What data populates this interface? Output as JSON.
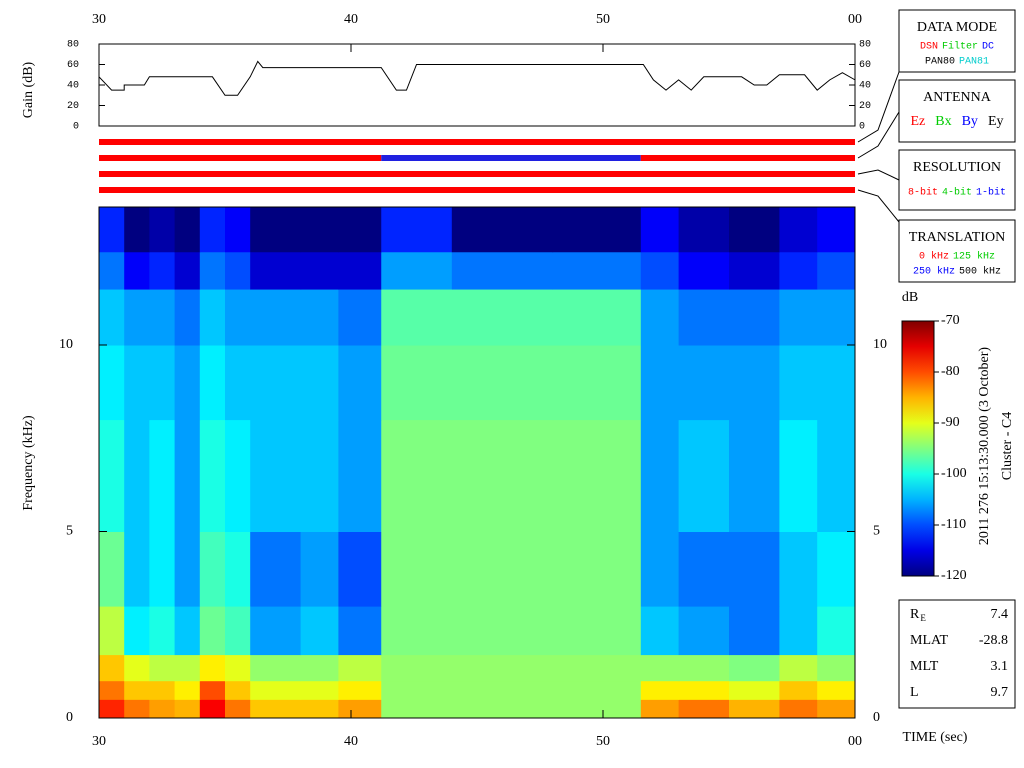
{
  "chart_data": [
    {
      "type": "line",
      "ylabel": "Gain (dB)",
      "color": "#000000",
      "x": [
        30,
        30.5,
        31,
        31,
        31.8,
        32,
        34.5,
        35,
        35.5,
        36,
        36.3,
        36.5,
        41.2,
        41.8,
        42.2,
        42.6,
        51.6,
        52,
        52.5,
        53,
        53.5,
        54,
        55.5,
        56,
        56.5,
        57,
        58,
        58.5,
        59,
        59.5,
        60
      ],
      "values": [
        48,
        35,
        35,
        40,
        40,
        48,
        48,
        30,
        30,
        48,
        63,
        57,
        57,
        35,
        35,
        60,
        60,
        45,
        35,
        45,
        35,
        48,
        48,
        40,
        40,
        50,
        50,
        35,
        45,
        52,
        45
      ],
      "xlim": [
        30,
        60
      ],
      "ylim": [
        0,
        80
      ],
      "yticks": [
        0,
        20,
        40,
        60,
        80
      ],
      "xticks": [
        30,
        40,
        50,
        {
          "value": 60,
          "label": "00"
        }
      ]
    },
    {
      "type": "status",
      "xlim": [
        30,
        60
      ],
      "bars": [
        {
          "segments": [
            {
              "start": 30,
              "end": 60,
              "color": "#ff0000"
            }
          ]
        },
        {
          "segments": [
            {
              "start": 30,
              "end": 41.2,
              "color": "#ff0000"
            },
            {
              "start": 41.2,
              "end": 51.5,
              "color": "#2020e0"
            },
            {
              "start": 51.5,
              "end": 60,
              "color": "#ff0000"
            }
          ]
        },
        {
          "segments": [
            {
              "start": 30,
              "end": 60,
              "color": "#ff0000"
            }
          ]
        },
        {
          "segments": [
            {
              "start": 30,
              "end": 60,
              "color": "#ff0000"
            }
          ]
        }
      ]
    },
    {
      "type": "heatmap",
      "ylabel": "Frequency (kHz)",
      "xlabel": "TIME (sec)",
      "xlim": [
        30,
        60
      ],
      "ylim": [
        0,
        13.7
      ],
      "yticks": [
        0,
        5,
        10
      ],
      "xticks": [
        30,
        40,
        50,
        {
          "value": 60,
          "label": "00"
        }
      ],
      "time_bins": [
        30,
        31,
        32,
        33,
        34,
        35,
        36,
        38,
        39.5,
        41.2,
        44,
        48,
        51.5,
        53,
        55,
        57,
        58.5,
        60
      ],
      "freq_bins": [
        0,
        0.5,
        1,
        1.7,
        3,
        5,
        8,
        10,
        11.5,
        12.5,
        13.7
      ],
      "values": [
        [
          -78,
          -82,
          -84,
          -85,
          -76,
          -82,
          -86,
          -86,
          -84,
          -94,
          -94,
          -94,
          -84,
          -82,
          -85,
          -82,
          -84
        ],
        [
          -82,
          -86,
          -86,
          -88,
          -80,
          -86,
          -90,
          -90,
          -88,
          -94,
          -94,
          -94,
          -88,
          -88,
          -90,
          -86,
          -88
        ],
        [
          -86,
          -90,
          -92,
          -92,
          -88,
          -90,
          -94,
          -94,
          -92,
          -94,
          -94,
          -94,
          -94,
          -94,
          -95,
          -92,
          -94
        ],
        [
          -92,
          -102,
          -100,
          -104,
          -96,
          -98,
          -106,
          -104,
          -108,
          -95,
          -95,
          -95,
          -104,
          -106,
          -108,
          -104,
          -100
        ],
        [
          -96,
          -104,
          -102,
          -106,
          -98,
          -100,
          -108,
          -106,
          -110,
          -95,
          -95,
          -95,
          -106,
          -108,
          -108,
          -104,
          -102
        ],
        [
          -100,
          -104,
          -102,
          -106,
          -100,
          -102,
          -104,
          -104,
          -106,
          -95,
          -95,
          -95,
          -106,
          -104,
          -106,
          -102,
          -104
        ],
        [
          -102,
          -104,
          -104,
          -106,
          -102,
          -104,
          -104,
          -104,
          -106,
          -96,
          -96,
          -96,
          -106,
          -106,
          -106,
          -104,
          -104
        ],
        [
          -104,
          -106,
          -106,
          -108,
          -104,
          -106,
          -106,
          -106,
          -108,
          -97,
          -97,
          -97,
          -106,
          -108,
          -108,
          -106,
          -106
        ],
        [
          -108,
          -114,
          -112,
          -116,
          -108,
          -110,
          -116,
          -116,
          -116,
          -106,
          -108,
          -108,
          -110,
          -114,
          -116,
          -112,
          -110
        ],
        [
          -112,
          -120,
          -118,
          -120,
          -112,
          -114,
          -120,
          -120,
          -120,
          -112,
          -120,
          -120,
          -114,
          -118,
          -120,
          -116,
          -114
        ]
      ],
      "colorbar": {
        "label": "dB",
        "clim": [
          -120,
          -70
        ],
        "ticks": [
          -70,
          -80,
          -90,
          -100,
          -110,
          -120
        ]
      }
    }
  ],
  "legend_panels": [
    {
      "title": "DATA MODE",
      "rows": [
        [
          {
            "text": "DSN",
            "color": "#ff0000"
          },
          {
            "text": "Filter",
            "color": "#00cc00"
          },
          {
            "text": "DC",
            "color": "#0000ff"
          }
        ],
        [
          {
            "text": "PAN80",
            "color": "#000000"
          },
          {
            "text": "PAN81",
            "color": "#00cccc"
          }
        ]
      ]
    },
    {
      "title": "ANTENNA",
      "rows": [
        [
          {
            "text": "Ez",
            "color": "#ff0000"
          },
          {
            "text": "Bx",
            "color": "#00cc00"
          },
          {
            "text": "By",
            "color": "#0000ff"
          },
          {
            "text": "Ey",
            "color": "#000000"
          }
        ]
      ]
    },
    {
      "title": "RESOLUTION",
      "rows": [
        [
          {
            "text": "8-bit",
            "color": "#ff0000"
          },
          {
            "text": "4-bit",
            "color": "#00cc00"
          },
          {
            "text": "1-bit",
            "color": "#0000ff"
          }
        ]
      ]
    },
    {
      "title": "TRANSLATION",
      "rows": [
        [
          {
            "text": "0 kHz",
            "color": "#ff0000"
          },
          {
            "text": "125 kHz",
            "color": "#00cc00"
          }
        ],
        [
          {
            "text": "250 kHz",
            "color": "#0000ff"
          },
          {
            "text": "500 kHz",
            "color": "#000000"
          }
        ]
      ]
    }
  ],
  "side_text": [
    "2011 276 15:13:30.000 (3 October)",
    "Cluster - C4"
  ],
  "orbit": [
    {
      "label": "R",
      "sub": "E",
      "value": "7.4"
    },
    {
      "label": "MLAT",
      "value": "-28.8"
    },
    {
      "label": "MLT",
      "value": "3.1"
    },
    {
      "label": "L",
      "value": "9.7"
    }
  ]
}
